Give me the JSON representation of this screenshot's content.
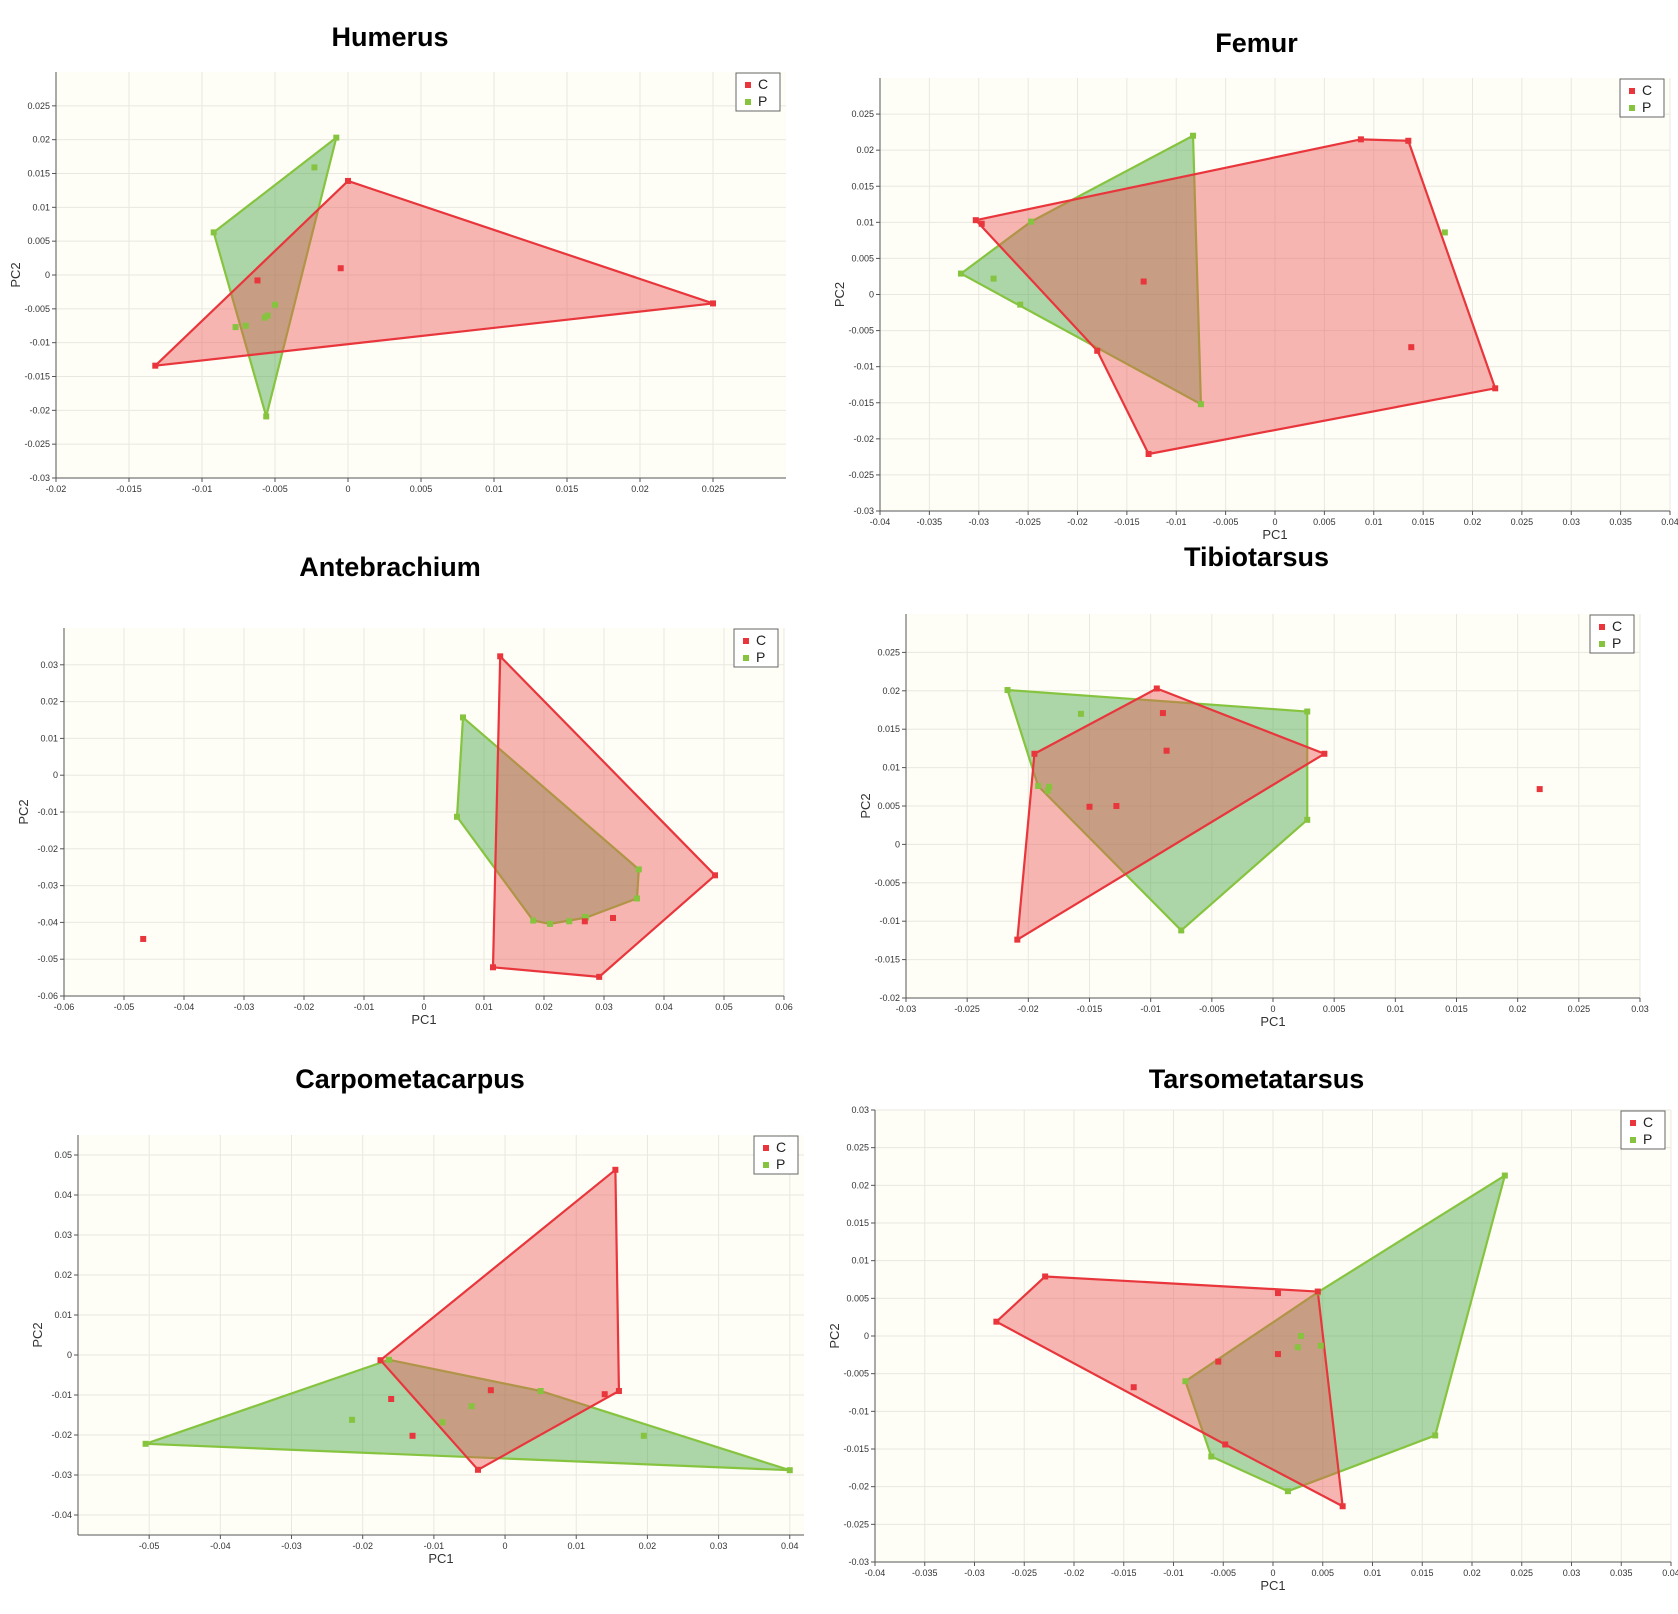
{
  "colors": {
    "C": "#e8363c",
    "P": "#86c440",
    "C_fill": "rgba(236,80,80,0.42)",
    "P_fill": "rgba(60,160,60,0.42)",
    "plot_bg": "#fefef6",
    "grid": "#e8e8e0"
  },
  "chart_data": [
    {
      "type": "scatter",
      "title": "Humerus",
      "xlabel": "",
      "ylabel": "PC2",
      "xlim": [
        -0.02,
        0.03
      ],
      "ylim": [
        -0.03,
        0.03
      ],
      "xticks": [
        -0.02,
        -0.015,
        -0.01,
        -0.005,
        0,
        0.005,
        0.01,
        0.015,
        0.02,
        0.025
      ],
      "yticks": [
        -0.03,
        -0.025,
        -0.02,
        -0.015,
        -0.01,
        -0.005,
        0,
        0.005,
        0.01,
        0.015,
        0.02,
        0.025
      ],
      "xtick_labels": [
        "-0.02",
        "-0.015",
        "-0.01",
        "-0.005",
        "0",
        "0.005",
        "0.01",
        "0.015",
        "0.02",
        "0.025"
      ],
      "ytick_labels": [
        "-0.03",
        "-0.025",
        "-0.02",
        "-0.015",
        "-0.01",
        "-0.005",
        "0",
        "0.005",
        "0.01",
        "0.015",
        "0.02",
        "0.025"
      ],
      "grid": true,
      "legend": "top-right",
      "series": [
        {
          "name": "C",
          "points": [
            [
              -0.0132,
              -0.0134
            ],
            [
              0.0,
              0.0139
            ],
            [
              0.025,
              -0.0042
            ],
            [
              -0.0005,
              0.001
            ],
            [
              -0.0062,
              -0.0008
            ]
          ],
          "hull": [
            [
              -0.0132,
              -0.0134
            ],
            [
              0.0,
              0.0139
            ],
            [
              0.025,
              -0.0042
            ]
          ]
        },
        {
          "name": "P",
          "points": [
            [
              -0.0092,
              0.0063
            ],
            [
              -0.0008,
              0.0203
            ],
            [
              -0.0056,
              -0.0209
            ],
            [
              -0.0023,
              0.0159
            ],
            [
              -0.0077,
              -0.0077
            ],
            [
              -0.007,
              -0.0075
            ],
            [
              -0.0057,
              -0.0063
            ],
            [
              -0.0055,
              -0.006
            ],
            [
              -0.005,
              -0.0044
            ]
          ],
          "hull": [
            [
              -0.0092,
              0.0063
            ],
            [
              -0.0008,
              0.0203
            ],
            [
              -0.0056,
              -0.0209
            ]
          ]
        }
      ]
    },
    {
      "type": "scatter",
      "title": "Femur",
      "xlabel": "PC1",
      "ylabel": "PC2",
      "xlim": [
        -0.04,
        0.04
      ],
      "ylim": [
        -0.03,
        0.03
      ],
      "xticks": [
        -0.04,
        -0.035,
        -0.03,
        -0.025,
        -0.02,
        -0.015,
        -0.01,
        -0.005,
        0,
        0.005,
        0.01,
        0.015,
        0.02,
        0.025,
        0.03,
        0.035,
        0.04
      ],
      "yticks": [
        -0.03,
        -0.025,
        -0.02,
        -0.015,
        -0.01,
        -0.005,
        0,
        0.005,
        0.01,
        0.015,
        0.02,
        0.025
      ],
      "xtick_labels": [
        "-0.04",
        "-0.035",
        "-0.03",
        "-0.025",
        "-0.02",
        "-0.015",
        "-0.01",
        "-0.005",
        "0",
        "0.005",
        "0.01",
        "0.015",
        "0.02",
        "0.025",
        "0.03",
        "0.035",
        "0.04"
      ],
      "ytick_labels": [
        "-0.03",
        "-0.025",
        "-0.02",
        "-0.015",
        "-0.01",
        "-0.005",
        "0",
        "0.005",
        "0.01",
        "0.015",
        "0.02",
        "0.025"
      ],
      "grid": true,
      "legend": "top-right",
      "series": [
        {
          "name": "C",
          "points": [
            [
              -0.0303,
              0.0103
            ],
            [
              0.0087,
              0.0215
            ],
            [
              0.0135,
              0.0213
            ],
            [
              0.0223,
              -0.013
            ],
            [
              -0.0128,
              -0.0221
            ],
            [
              -0.018,
              -0.0078
            ],
            [
              -0.0297,
              0.0098
            ],
            [
              -0.0133,
              0.0018
            ],
            [
              0.0138,
              -0.0073
            ]
          ],
          "hull": [
            [
              -0.0303,
              0.0103
            ],
            [
              0.0087,
              0.0215
            ],
            [
              0.0135,
              0.0213
            ],
            [
              0.0223,
              -0.013
            ],
            [
              -0.0128,
              -0.0221
            ],
            [
              -0.018,
              -0.0078
            ]
          ]
        },
        {
          "name": "P",
          "points": [
            [
              -0.0318,
              0.0029
            ],
            [
              -0.0083,
              0.022
            ],
            [
              -0.0075,
              -0.0152
            ],
            [
              -0.0247,
              0.0101
            ],
            [
              -0.0285,
              0.0022
            ],
            [
              -0.0258,
              -0.0014
            ],
            [
              0.0172,
              0.0086
            ]
          ],
          "hull": [
            [
              -0.0318,
              0.0029
            ],
            [
              -0.0247,
              0.0101
            ],
            [
              -0.0083,
              0.022
            ],
            [
              -0.0075,
              -0.0152
            ]
          ]
        }
      ]
    },
    {
      "type": "scatter",
      "title": "Antebrachium",
      "xlabel": "PC1",
      "ylabel": "PC2",
      "xlim": [
        -0.06,
        0.06
      ],
      "ylim": [
        -0.06,
        0.04
      ],
      "xticks": [
        -0.06,
        -0.05,
        -0.04,
        -0.03,
        -0.02,
        -0.01,
        0,
        0.01,
        0.02,
        0.03,
        0.04,
        0.05,
        0.06
      ],
      "yticks": [
        -0.06,
        -0.05,
        -0.04,
        -0.03,
        -0.02,
        -0.01,
        0,
        0.01,
        0.02,
        0.03
      ],
      "xtick_labels": [
        "-0.06",
        "-0.05",
        "-0.04",
        "-0.03",
        "-0.02",
        "-0.01",
        "0",
        "0.01",
        "0.02",
        "0.03",
        "0.04",
        "0.05",
        "0.06"
      ],
      "ytick_labels": [
        "-0.06",
        "-0.05",
        "-0.04",
        "-0.03",
        "-0.02",
        "-0.01",
        "0",
        "0.01",
        "0.02",
        "0.03"
      ],
      "grid": true,
      "legend": "top-right",
      "series": [
        {
          "name": "C",
          "points": [
            [
              0.0127,
              0.0323
            ],
            [
              0.0485,
              -0.0272
            ],
            [
              0.0292,
              -0.0548
            ],
            [
              0.0115,
              -0.0522
            ],
            [
              -0.0468,
              -0.0445
            ],
            [
              0.0315,
              -0.0388
            ],
            [
              0.0268,
              -0.0397
            ]
          ],
          "hull": [
            [
              0.0127,
              0.0323
            ],
            [
              0.0485,
              -0.0272
            ],
            [
              0.0292,
              -0.0548
            ],
            [
              0.0115,
              -0.0522
            ]
          ]
        },
        {
          "name": "P",
          "points": [
            [
              0.0065,
              0.0157
            ],
            [
              0.0358,
              -0.0256
            ],
            [
              0.0355,
              -0.0335
            ],
            [
              0.027,
              -0.0387
            ],
            [
              0.021,
              -0.0404
            ],
            [
              0.0182,
              -0.0395
            ],
            [
              0.0055,
              -0.0113
            ],
            [
              0.0242,
              -0.0397
            ],
            [
              0.0268,
              -0.0385
            ]
          ],
          "hull": [
            [
              0.0065,
              0.0157
            ],
            [
              0.0358,
              -0.0256
            ],
            [
              0.0355,
              -0.0335
            ],
            [
              0.027,
              -0.0387
            ],
            [
              0.021,
              -0.0404
            ],
            [
              0.0182,
              -0.0395
            ],
            [
              0.0055,
              -0.0113
            ]
          ]
        }
      ]
    },
    {
      "type": "scatter",
      "title": "Tibiotarsus",
      "xlabel": "PC1",
      "ylabel": "PC2",
      "xlim": [
        -0.03,
        0.03
      ],
      "ylim": [
        -0.02,
        0.03
      ],
      "xticks": [
        -0.03,
        -0.025,
        -0.02,
        -0.015,
        -0.01,
        -0.005,
        0,
        0.005,
        0.01,
        0.015,
        0.02,
        0.025,
        0.03
      ],
      "yticks": [
        -0.02,
        -0.015,
        -0.01,
        -0.005,
        0,
        0.005,
        0.01,
        0.015,
        0.02,
        0.025
      ],
      "xtick_labels": [
        "-0.03",
        "-0.025",
        "-0.02",
        "-0.015",
        "-0.01",
        "-0.005",
        "0",
        "0.005",
        "0.01",
        "0.015",
        "0.02",
        "0.025",
        "0.03"
      ],
      "ytick_labels": [
        "-0.02",
        "-0.015",
        "-0.01",
        "-0.005",
        "0",
        "0.005",
        "0.01",
        "0.015",
        "0.02",
        "0.025"
      ],
      "grid": true,
      "legend": "top-right",
      "series": [
        {
          "name": "C",
          "points": [
            [
              -0.0195,
              0.0118
            ],
            [
              -0.0095,
              0.0203
            ],
            [
              0.0042,
              0.0118
            ],
            [
              -0.0209,
              -0.0124
            ],
            [
              -0.009,
              0.0171
            ],
            [
              -0.0087,
              0.0122
            ],
            [
              -0.015,
              0.0049
            ],
            [
              -0.0128,
              0.005
            ],
            [
              0.0218,
              0.0072
            ]
          ],
          "hull": [
            [
              -0.0195,
              0.0118
            ],
            [
              -0.0095,
              0.0203
            ],
            [
              0.0042,
              0.0118
            ],
            [
              -0.0209,
              -0.0124
            ]
          ]
        },
        {
          "name": "P",
          "points": [
            [
              -0.0217,
              0.0201
            ],
            [
              0.0028,
              0.0173
            ],
            [
              0.0028,
              0.0032
            ],
            [
              -0.0075,
              -0.0112
            ],
            [
              -0.0192,
              0.0076
            ],
            [
              -0.0183,
              0.0075
            ],
            [
              -0.0184,
              0.007
            ],
            [
              -0.0157,
              0.017
            ]
          ],
          "hull": [
            [
              -0.0217,
              0.0201
            ],
            [
              0.0028,
              0.0173
            ],
            [
              0.0028,
              0.0032
            ],
            [
              -0.0075,
              -0.0112
            ],
            [
              -0.0192,
              0.0076
            ]
          ]
        }
      ]
    },
    {
      "type": "scatter",
      "title": "Carpometacarpus",
      "xlabel": "PC1",
      "ylabel": "PC2",
      "xlim": [
        -0.06,
        0.042
      ],
      "ylim": [
        -0.045,
        0.055
      ],
      "xticks": [
        -0.05,
        -0.04,
        -0.03,
        -0.02,
        -0.01,
        0,
        0.01,
        0.02,
        0.03,
        0.04
      ],
      "yticks": [
        -0.04,
        -0.03,
        -0.02,
        -0.01,
        0,
        0.01,
        0.02,
        0.03,
        0.04,
        0.05
      ],
      "xtick_labels": [
        "-0.05",
        "-0.04",
        "-0.03",
        "-0.02",
        "-0.01",
        "0",
        "0.01",
        "0.02",
        "0.03",
        "0.04"
      ],
      "ytick_labels": [
        "-0.04",
        "-0.03",
        "-0.02",
        "-0.01",
        "0",
        "0.01",
        "0.02",
        "0.03",
        "0.04",
        "0.05"
      ],
      "grid": true,
      "legend": "top-right",
      "series": [
        {
          "name": "C",
          "points": [
            [
              -0.0175,
              -0.0013
            ],
            [
              0.0155,
              0.0463
            ],
            [
              0.016,
              -0.009
            ],
            [
              -0.0038,
              -0.0287
            ],
            [
              -0.016,
              -0.011
            ],
            [
              -0.013,
              -0.0202
            ],
            [
              -0.002,
              -0.0088
            ],
            [
              0.014,
              -0.0098
            ]
          ],
          "hull": [
            [
              -0.0175,
              -0.0013
            ],
            [
              0.0155,
              0.0463
            ],
            [
              0.016,
              -0.009
            ],
            [
              -0.0038,
              -0.0287
            ]
          ]
        },
        {
          "name": "P",
          "points": [
            [
              -0.0505,
              -0.0222
            ],
            [
              -0.0163,
              -0.0012
            ],
            [
              0.005,
              -0.009
            ],
            [
              0.04,
              -0.0288
            ],
            [
              -0.0215,
              -0.0162
            ],
            [
              -0.0088,
              -0.0168
            ],
            [
              -0.0047,
              -0.0128
            ],
            [
              0.0195,
              -0.0202
            ]
          ],
          "hull": [
            [
              -0.0505,
              -0.0222
            ],
            [
              -0.0163,
              -0.0012
            ],
            [
              0.005,
              -0.009
            ],
            [
              0.04,
              -0.0288
            ]
          ]
        }
      ]
    },
    {
      "type": "scatter",
      "title": "Tarsometatarsus",
      "xlabel": "PC1",
      "ylabel": "PC2",
      "xlim": [
        -0.04,
        0.04
      ],
      "ylim": [
        -0.03,
        0.03
      ],
      "xticks": [
        -0.04,
        -0.035,
        -0.03,
        -0.025,
        -0.02,
        -0.015,
        -0.01,
        -0.005,
        0,
        0.005,
        0.01,
        0.015,
        0.02,
        0.025,
        0.03,
        0.035,
        0.04
      ],
      "yticks": [
        -0.03,
        -0.025,
        -0.02,
        -0.015,
        -0.01,
        -0.005,
        0,
        0.005,
        0.01,
        0.015,
        0.02,
        0.025,
        0.03
      ],
      "xtick_labels": [
        "-0.04",
        "-0.035",
        "-0.03",
        "-0.025",
        "-0.02",
        "-0.015",
        "-0.01",
        "-0.005",
        "0",
        "0.005",
        "0.01",
        "0.015",
        "0.02",
        "0.025",
        "0.03",
        "0.035",
        "0.04"
      ],
      "ytick_labels": [
        "-0.03",
        "-0.025",
        "-0.02",
        "-0.015",
        "-0.01",
        "-0.005",
        "0",
        "0.005",
        "0.01",
        "0.015",
        "0.02",
        "0.025",
        "0.03"
      ],
      "grid": true,
      "legend": "top-right",
      "series": [
        {
          "name": "C",
          "points": [
            [
              -0.0278,
              0.0019
            ],
            [
              -0.0229,
              0.0079
            ],
            [
              0.0045,
              0.0059
            ],
            [
              0.007,
              -0.0226
            ],
            [
              -0.0048,
              -0.0144
            ],
            [
              -0.014,
              -0.0068
            ],
            [
              -0.0055,
              -0.0034
            ],
            [
              0.0005,
              0.0057
            ],
            [
              0.0005,
              -0.0024
            ]
          ],
          "hull": [
            [
              -0.0278,
              0.0019
            ],
            [
              -0.0229,
              0.0079
            ],
            [
              0.0045,
              0.0059
            ],
            [
              0.007,
              -0.0226
            ],
            [
              -0.0048,
              -0.0144
            ]
          ]
        },
        {
          "name": "P",
          "points": [
            [
              -0.0088,
              -0.006
            ],
            [
              0.0045,
              0.0058
            ],
            [
              0.0233,
              0.0213
            ],
            [
              0.0163,
              -0.0132
            ],
            [
              0.0015,
              -0.0206
            ],
            [
              -0.0062,
              -0.016
            ],
            [
              0.0028,
              0.0
            ],
            [
              0.0025,
              -0.0015
            ],
            [
              0.0048,
              -0.0013
            ]
          ],
          "hull": [
            [
              -0.0088,
              -0.006
            ],
            [
              0.0045,
              0.0058
            ],
            [
              0.0233,
              0.0213
            ],
            [
              0.0163,
              -0.0132
            ],
            [
              0.0015,
              -0.0206
            ],
            [
              -0.0062,
              -0.016
            ]
          ]
        }
      ]
    }
  ]
}
